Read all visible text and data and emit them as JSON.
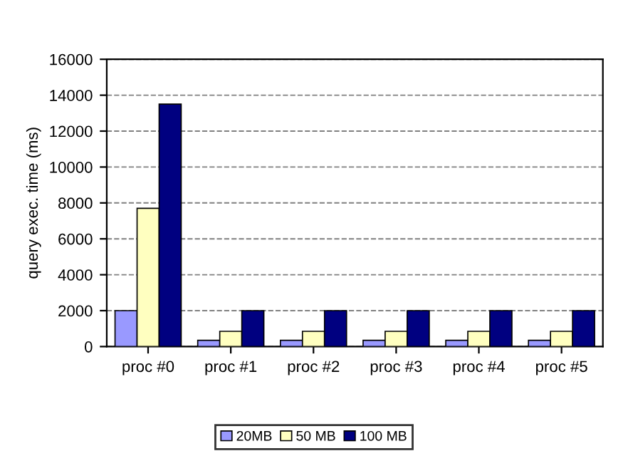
{
  "chart_data": {
    "type": "bar",
    "ylabel": "query exec. time (ms)",
    "categories": [
      "proc #0",
      "proc #1",
      "proc #2",
      "proc #3",
      "proc #4",
      "proc #5"
    ],
    "series": [
      {
        "name": "20MB",
        "color": "#9999ff",
        "values": [
          2000,
          350,
          350,
          350,
          350,
          350
        ]
      },
      {
        "name": "50 MB",
        "color": "#ffffc0",
        "values": [
          7700,
          850,
          850,
          850,
          850,
          850
        ]
      },
      {
        "name": "100 MB",
        "color": "#000080",
        "values": [
          13500,
          2000,
          2000,
          2000,
          2000,
          2000
        ]
      }
    ],
    "ylim": [
      0,
      16000
    ],
    "yticks": [
      0,
      2000,
      4000,
      6000,
      8000,
      10000,
      12000,
      14000,
      16000
    ],
    "grid": "y",
    "legend": "bottom"
  }
}
